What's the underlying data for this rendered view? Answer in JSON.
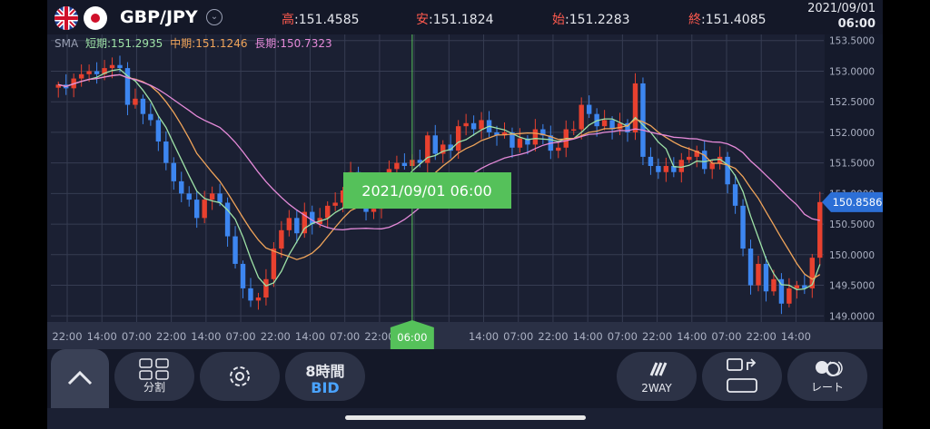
{
  "header": {
    "pair": "GBP/JPY",
    "high_label": "高",
    "high_value": ":151.4585",
    "low_label": "安",
    "low_value": ":151.1824",
    "open_label": "始",
    "open_value": ":151.2283",
    "close_label": "終",
    "close_value": ":151.4085",
    "date": "2021/09/01",
    "time": "06:00"
  },
  "sma": {
    "label": "SMA",
    "short_label": "短期:151.2935",
    "mid_label": "中期:151.1246",
    "long_label": "長期:150.7323",
    "short_color": "#9ee2a7",
    "mid_color": "#f0a45a",
    "long_color": "#e58ad9"
  },
  "colors": {
    "up": "#e8412f",
    "down": "#3d86f0",
    "crosshair": "#55c15a"
  },
  "crosshair": {
    "label": "2021/09/01 06:00",
    "x_label": "06:00"
  },
  "price_tag": "150.8586",
  "chart_data": {
    "type": "candlestick",
    "y_ticks": [
      "153.5000",
      "153.0000",
      "152.5000",
      "152.0000",
      "151.5000",
      "151.0000",
      "150.5000",
      "150.0000",
      "149.5000",
      "149.0000"
    ],
    "ylim": [
      148.9,
      153.6
    ],
    "x_ticks": [
      "22:00",
      "14:00",
      "07:00",
      "22:00",
      "14:00",
      "07:00",
      "22:00",
      "14:00",
      "07:00",
      "22:00",
      "14:00",
      "06:00",
      "14:00",
      "07:00",
      "22:00",
      "14:00",
      "07:00",
      "22:00",
      "14:00",
      "07:00",
      "22:00",
      "14:00"
    ],
    "closes": [
      152.78,
      152.72,
      152.88,
      152.95,
      153.0,
      152.95,
      153.05,
      153.1,
      153.05,
      152.45,
      152.55,
      152.3,
      152.2,
      151.85,
      151.5,
      151.2,
      151.0,
      150.9,
      150.6,
      150.9,
      151.0,
      150.85,
      150.3,
      149.85,
      149.45,
      149.25,
      149.3,
      149.6,
      150.1,
      150.4,
      150.6,
      150.35,
      150.7,
      150.5,
      150.6,
      150.8,
      150.85,
      151.05,
      151.35,
      151.0,
      150.7,
      150.75,
      150.95,
      151.4,
      151.5,
      151.45,
      151.55,
      151.5,
      151.95,
      151.65,
      151.8,
      151.7,
      152.1,
      152.15,
      152.05,
      152.2,
      152.0,
      151.95,
      152.0,
      151.75,
      151.9,
      151.8,
      152.05,
      151.95,
      151.7,
      151.75,
      152.05,
      152.05,
      152.45,
      152.3,
      152.1,
      152.2,
      152.05,
      152.15,
      152.0,
      152.8,
      151.6,
      151.45,
      151.35,
      151.45,
      151.35,
      151.55,
      151.6,
      151.7,
      151.4,
      151.5,
      151.6,
      151.15,
      150.8,
      150.1,
      149.5,
      149.85,
      149.4,
      149.6,
      149.2,
      149.45,
      149.5,
      149.45,
      149.95,
      150.86
    ]
  },
  "bottom": {
    "split_label": "分割",
    "timeframe_label": "8時間",
    "bid_label": "BID",
    "twoway_label": "2WAY",
    "rate_label": "レート"
  }
}
